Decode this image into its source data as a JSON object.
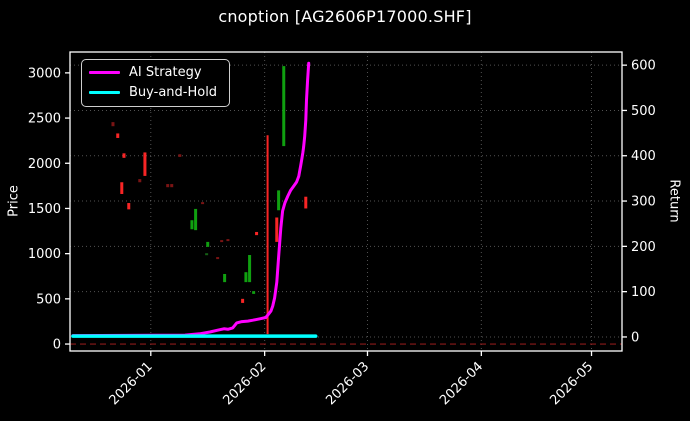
{
  "title": "cnoption [AG2606P17000.SHF]",
  "legend": {
    "items": [
      {
        "label": "AI Strategy",
        "color": "#ff00ff"
      },
      {
        "label": "Buy-and-Hold",
        "color": "#00ffff"
      }
    ]
  },
  "colors": {
    "background": "#000000",
    "text": "#ffffff",
    "spine": "#ffffff",
    "grid": "#ffffff",
    "candle_up": "#10a010",
    "candle_down": "#f82525",
    "candle_up_dim": "#156015",
    "candle_down_dim": "#7a1414",
    "ai_strategy": "#ff00ff",
    "buy_and_hold": "#00ffff",
    "zero_price_line": "#8b1a1a"
  },
  "chart_data": {
    "type": "candlestick+line",
    "title": "cnoption [AG2606P17000.SHF]",
    "x_axis": {
      "range": [
        -22,
        128.3
      ],
      "ticks": [
        {
          "label": "2026-01",
          "day": 0
        },
        {
          "label": "2026-02",
          "day": 31
        },
        {
          "label": "2026-03",
          "day": 59
        },
        {
          "label": "2026-04",
          "day": 90
        },
        {
          "label": "2026-05",
          "day": 120
        }
      ]
    },
    "price_axis": {
      "label": "Price",
      "range": [
        -77,
        3231
      ],
      "ticks": [
        0,
        500,
        1000,
        1500,
        2000,
        2500,
        3000
      ]
    },
    "return_axis": {
      "label": "Return",
      "range": [
        -31,
        629
      ],
      "ticks": [
        0,
        100,
        200,
        300,
        400,
        500,
        600
      ]
    },
    "hlines": [
      {
        "axis": "price",
        "value": 0,
        "color": "#8b1a1a",
        "dash": "6 4"
      }
    ],
    "candles": [
      {
        "d": -10.3,
        "hi": 2455,
        "lo": 2410,
        "k": "down_dim"
      },
      {
        "d": -9.0,
        "hi": 2330,
        "lo": 2280,
        "k": "down"
      },
      {
        "d": -7.9,
        "hi": 1790,
        "lo": 1660,
        "k": "down"
      },
      {
        "d": -7.3,
        "hi": 2110,
        "lo": 2060,
        "k": "down"
      },
      {
        "d": -6.0,
        "hi": 1560,
        "lo": 1490,
        "k": "down"
      },
      {
        "d": -3.0,
        "hi": 1825,
        "lo": 1790,
        "k": "down_dim"
      },
      {
        "d": -1.6,
        "hi": 2120,
        "lo": 1860,
        "k": "down"
      },
      {
        "d": 4.6,
        "hi": 1770,
        "lo": 1735,
        "k": "down_dim"
      },
      {
        "d": 5.7,
        "hi": 1770,
        "lo": 1735,
        "k": "down_dim"
      },
      {
        "d": 7.9,
        "hi": 2100,
        "lo": 2070,
        "k": "down_dim"
      },
      {
        "d": 11.2,
        "hi": 1370,
        "lo": 1270,
        "k": "up"
      },
      {
        "d": 12.2,
        "hi": 1495,
        "lo": 1260,
        "k": "up"
      },
      {
        "d": 14.1,
        "hi": 1570,
        "lo": 1548,
        "k": "down_dim"
      },
      {
        "d": 15.2,
        "hi": 1005,
        "lo": 985,
        "k": "up_dim"
      },
      {
        "d": 15.5,
        "hi": 1130,
        "lo": 1075,
        "k": "up"
      },
      {
        "d": 18.2,
        "hi": 962,
        "lo": 940,
        "k": "down_dim"
      },
      {
        "d": 19.3,
        "hi": 1150,
        "lo": 1128,
        "k": "down_dim"
      },
      {
        "d": 20.1,
        "hi": 775,
        "lo": 685,
        "k": "up"
      },
      {
        "d": 21.0,
        "hi": 1161,
        "lo": 1139,
        "k": "down_dim"
      },
      {
        "d": 25.0,
        "hi": 500,
        "lo": 455,
        "k": "down"
      },
      {
        "d": 25.9,
        "hi": 795,
        "lo": 685,
        "k": "up"
      },
      {
        "d": 26.9,
        "hi": 985,
        "lo": 685,
        "k": "up"
      },
      {
        "d": 28.0,
        "hi": 585,
        "lo": 555,
        "k": "up"
      },
      {
        "d": 28.8,
        "hi": 1240,
        "lo": 1205,
        "k": "down"
      },
      {
        "d": 31.8,
        "hi": 2310,
        "lo": 110,
        "k": "down",
        "w": 2
      },
      {
        "d": 34.3,
        "hi": 1400,
        "lo": 1130,
        "k": "down"
      },
      {
        "d": 34.8,
        "hi": 1700,
        "lo": 1480,
        "k": "up"
      },
      {
        "d": 36.2,
        "hi": 3075,
        "lo": 2190,
        "k": "up"
      },
      {
        "d": 42.2,
        "hi": 1630,
        "lo": 1500,
        "k": "down"
      }
    ],
    "series": [
      {
        "name": "AI Strategy",
        "axis": "return",
        "color": "#ff00ff",
        "width": 3,
        "points": [
          [
            -21.2,
            3
          ],
          [
            9.3,
            4
          ],
          [
            13.3,
            7
          ],
          [
            16.1,
            11
          ],
          [
            18.2,
            15
          ],
          [
            19.9,
            18
          ],
          [
            21,
            17
          ],
          [
            22.3,
            20
          ],
          [
            23.4,
            31
          ],
          [
            24.8,
            34
          ],
          [
            26.4,
            35
          ],
          [
            27.8,
            37
          ],
          [
            29.7,
            40
          ],
          [
            31.3,
            43
          ],
          [
            32.1,
            51
          ],
          [
            32.7,
            57
          ],
          [
            33.2,
            68
          ],
          [
            33.7,
            86
          ],
          [
            34.3,
            121
          ],
          [
            34.8,
            176
          ],
          [
            35.4,
            240
          ],
          [
            35.9,
            278
          ],
          [
            36.5,
            296
          ],
          [
            37.3,
            311
          ],
          [
            38.1,
            324
          ],
          [
            38.9,
            333
          ],
          [
            39.7,
            342
          ],
          [
            40.3,
            355
          ],
          [
            40.5,
            364
          ],
          [
            40.8,
            377
          ],
          [
            41.1,
            391
          ],
          [
            41.4,
            406
          ],
          [
            41.6,
            419
          ],
          [
            41.9,
            443
          ],
          [
            42.2,
            479
          ],
          [
            42.4,
            523
          ],
          [
            42.7,
            567
          ],
          [
            43,
            604
          ]
        ]
      },
      {
        "name": "Buy-and-Hold",
        "axis": "return",
        "color": "#00ffff",
        "width": 3.5,
        "points": [
          [
            -21.2,
            2
          ],
          [
            44.9,
            2
          ]
        ]
      }
    ]
  }
}
